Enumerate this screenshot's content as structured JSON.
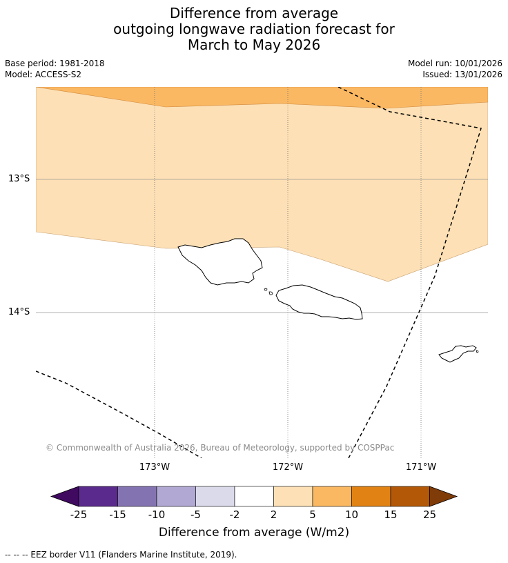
{
  "title": {
    "line1": "Difference from average",
    "line2": "outgoing longwave radiation forecast for",
    "line3": "March to May 2026"
  },
  "meta": {
    "base_period": "Base period: 1981-2018",
    "model": "Model: ACCESS-S2",
    "model_run": "Model run: 10/01/2026",
    "issued": "Issued: 13/01/2026"
  },
  "map": {
    "lat_labels": [
      "13°S",
      "14°S"
    ],
    "lon_labels": [
      "173°W",
      "172°W",
      "171°W"
    ],
    "copyright": "© Commonwealth of Australia 2026, Bureau of Meteorology, supported by COSPPac",
    "colors": {
      "band_2_5": "#fde0b5",
      "band_5_10": "#fbb862",
      "eez": "#000000",
      "grid": "#888888"
    }
  },
  "colorbar": {
    "title": "Difference from average (W/m2)",
    "ticks": [
      "-25",
      "-15",
      "-10",
      "-5",
      "-2",
      "2",
      "5",
      "10",
      "15",
      "25"
    ],
    "colors": [
      "#3f0a5f",
      "#5a2a8c",
      "#8473b1",
      "#b1a9d3",
      "#dadaeb",
      "#ffffff",
      "#fde0b5",
      "#fbb862",
      "#e08214",
      "#b35806",
      "#7f3b08"
    ]
  },
  "footer": {
    "legend_text": "--  --  -- EEZ border V11 (Flanders Marine Institute, 2019)."
  }
}
